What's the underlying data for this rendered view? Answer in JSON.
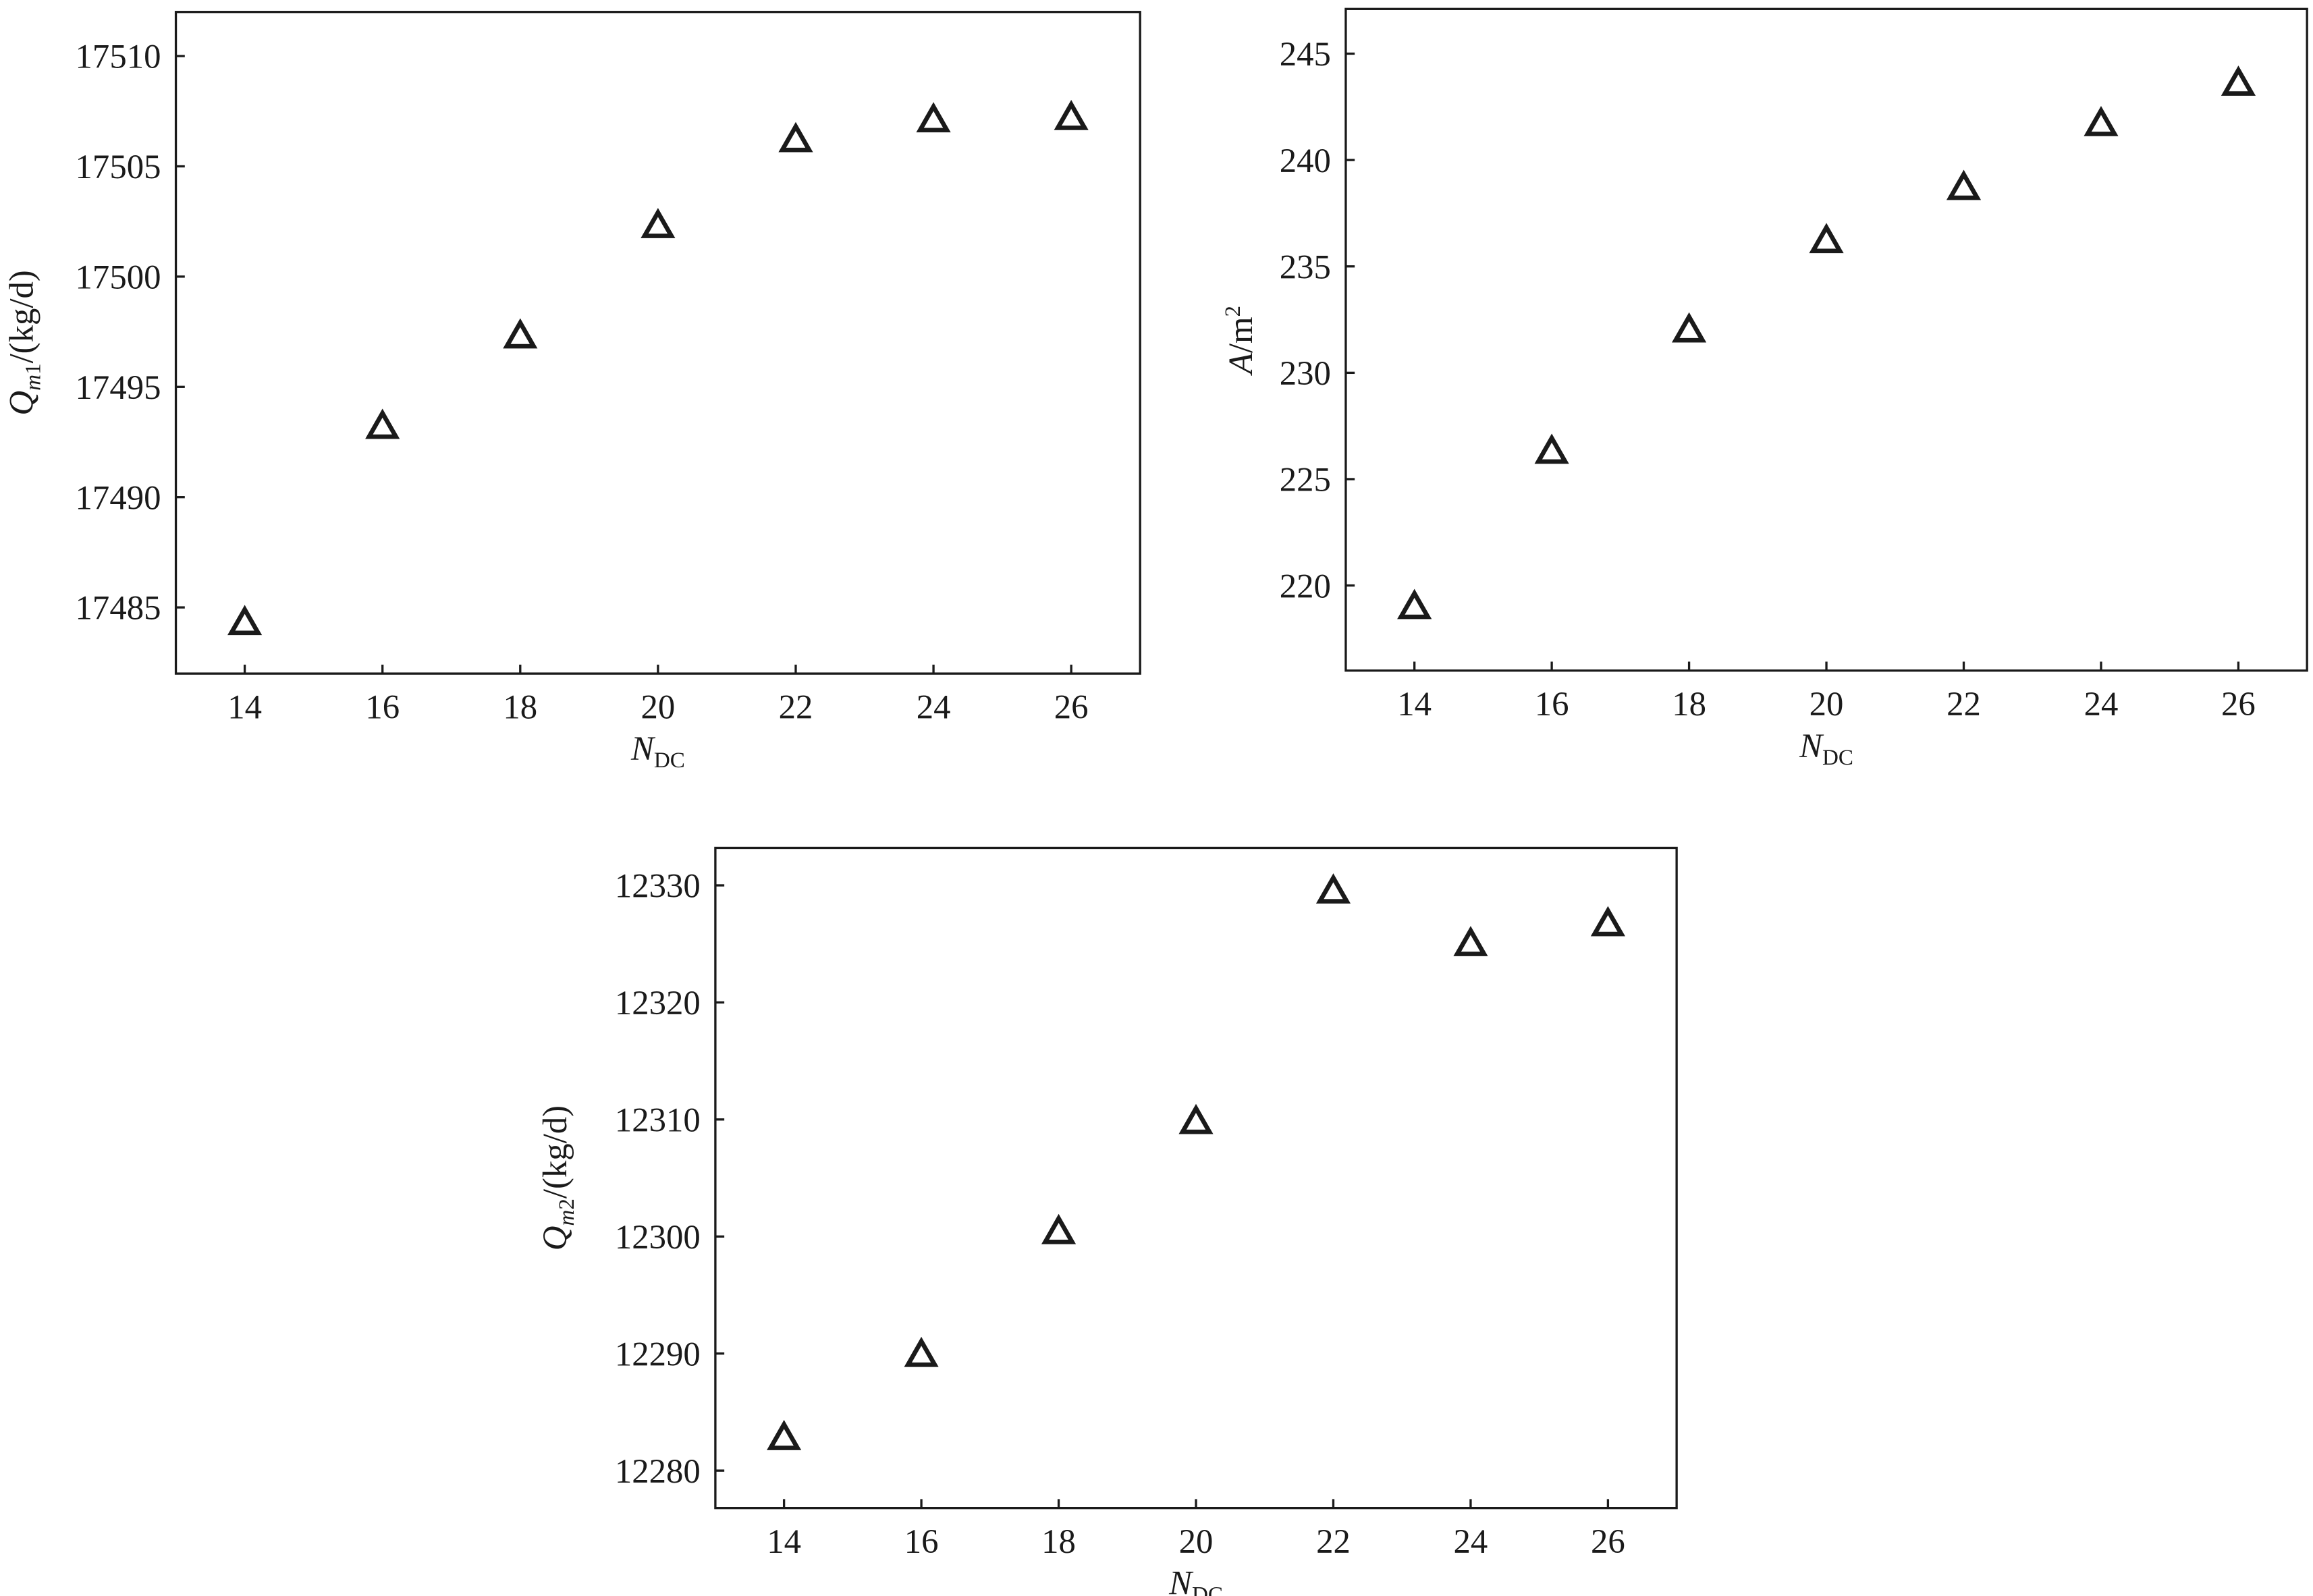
{
  "chart_data": [
    {
      "type": "scatter",
      "marker": "triangle",
      "color": "#1a1a1a",
      "x": [
        14,
        16,
        18,
        20,
        22,
        24,
        26
      ],
      "values": [
        17484.3,
        17493.2,
        17497.3,
        17502.3,
        17506.2,
        17507.1,
        17507.2
      ],
      "xlim": [
        13,
        27
      ],
      "xticks": [
        14,
        16,
        18,
        20,
        22,
        24,
        26
      ],
      "ylim": [
        17482,
        17512
      ],
      "yticks": [
        17485,
        17490,
        17495,
        17500,
        17505,
        17510
      ],
      "xlabel": [
        {
          "text": "N",
          "italic": true
        },
        {
          "text": "DC",
          "sub": true
        }
      ],
      "ylabel": [
        {
          "text": "Q",
          "italic": true
        },
        {
          "text": "m",
          "sub": true,
          "italic": true
        },
        {
          "text": "1",
          "sub": true
        },
        {
          "text": "/(kg/d)"
        }
      ]
    },
    {
      "type": "scatter",
      "marker": "triangle",
      "color": "#1a1a1a",
      "x": [
        14,
        16,
        18,
        20,
        22,
        24,
        26
      ],
      "values": [
        219.0,
        226.3,
        232.0,
        236.2,
        238.7,
        241.7,
        243.6
      ],
      "xlim": [
        13,
        27
      ],
      "xticks": [
        14,
        16,
        18,
        20,
        22,
        24,
        26
      ],
      "ylim": [
        216,
        247.1
      ],
      "yticks": [
        220,
        225,
        230,
        235,
        240,
        245
      ],
      "xlabel": [
        {
          "text": "N",
          "italic": true
        },
        {
          "text": "DC",
          "sub": true
        }
      ],
      "ylabel": [
        {
          "text": "A",
          "italic": true
        },
        {
          "text": "/m"
        },
        {
          "text": "2",
          "sup": true
        }
      ]
    },
    {
      "type": "scatter",
      "marker": "triangle",
      "color": "#1a1a1a",
      "x": [
        14,
        16,
        18,
        20,
        22,
        24,
        26
      ],
      "values": [
        12282.8,
        12289.9,
        12300.4,
        12309.8,
        12329.5,
        12325.0,
        12326.7
      ],
      "xlim": [
        13,
        27
      ],
      "xticks": [
        14,
        16,
        18,
        20,
        22,
        24,
        26
      ],
      "ylim": [
        12276.8,
        12333.2
      ],
      "yticks": [
        12280,
        12290,
        12300,
        12310,
        12320,
        12330
      ],
      "xlabel": [
        {
          "text": "N",
          "italic": true
        },
        {
          "text": "DC",
          "sub": true
        }
      ],
      "ylabel": [
        {
          "text": "Q",
          "italic": true
        },
        {
          "text": "m",
          "sub": true,
          "italic": true
        },
        {
          "text": "2",
          "sub": true
        },
        {
          "text": "/(kg/d)"
        }
      ]
    }
  ]
}
